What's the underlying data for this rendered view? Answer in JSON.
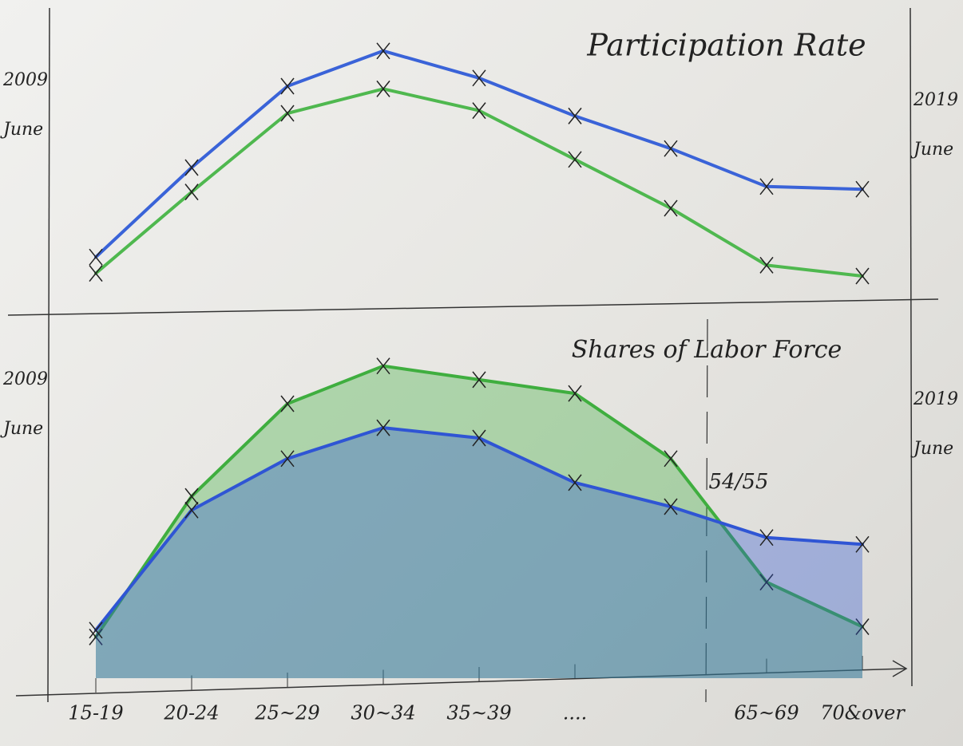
{
  "chart_data": [
    {
      "type": "line",
      "title": "Participation Rate",
      "series": [
        {
          "name": "2019 June",
          "color": "#3a63d8",
          "values": [
            17,
            50,
            80,
            93,
            83,
            69,
            57,
            43,
            42
          ]
        },
        {
          "name": "2009 June",
          "color": "#4fb84f",
          "values": [
            11,
            41,
            70,
            79,
            71,
            53,
            35,
            14,
            10
          ]
        }
      ],
      "ylim": [
        0,
        100
      ]
    },
    {
      "type": "area",
      "title": "Shares of Labor Force",
      "annotation": "54/55",
      "categories": [
        "15-19",
        "20-24",
        "25~29",
        "30~34",
        "35~39",
        "....",
        null,
        "65~69",
        "70&over"
      ],
      "series": [
        {
          "name": "2019 June",
          "color": "#2f55d4",
          "values": [
            14,
            49,
            64,
            73,
            70,
            57,
            50,
            41,
            39
          ]
        },
        {
          "name": "2009 June",
          "color": "#3fae3f",
          "values": [
            12,
            53,
            80,
            91,
            87,
            83,
            64,
            28,
            15
          ]
        }
      ],
      "ylim": [
        0,
        100
      ]
    }
  ]
}
